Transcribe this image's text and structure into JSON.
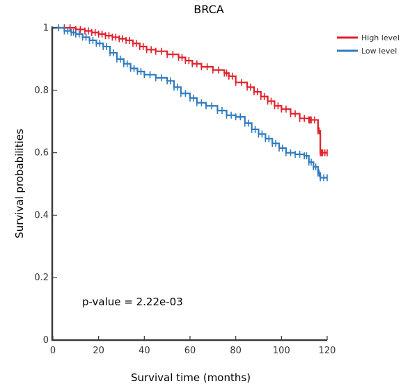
{
  "chart_data": {
    "type": "line",
    "title": "BRCA",
    "xlabel": "Survival time (months)",
    "ylabel": "Survival probabilities",
    "xlim": [
      0,
      120
    ],
    "ylim": [
      0,
      1
    ],
    "xticks": [
      0,
      20,
      40,
      60,
      80,
      100,
      120
    ],
    "yticks": [
      0,
      0.2,
      0.4,
      0.6,
      0.8,
      1
    ],
    "ytick_labels": [
      "0",
      "0.2",
      "0.4",
      "0.6",
      "0.8",
      "1"
    ],
    "grid": false,
    "legend_position": "top-right",
    "annotation": "p-value = 2.22e-03",
    "series": [
      {
        "name": "High level",
        "color": "#e0202a",
        "x": [
          0,
          5,
          10,
          14,
          17,
          20,
          23,
          26,
          29,
          32,
          35,
          38,
          41,
          45,
          50,
          55,
          58,
          61,
          65,
          70,
          75,
          77,
          80,
          85,
          88,
          91,
          94,
          97,
          100,
          104,
          108,
          112,
          113,
          116,
          117,
          118,
          120
        ],
        "y": [
          1.0,
          1.0,
          0.995,
          0.99,
          0.985,
          0.98,
          0.975,
          0.97,
          0.965,
          0.96,
          0.95,
          0.94,
          0.93,
          0.925,
          0.915,
          0.905,
          0.895,
          0.885,
          0.875,
          0.865,
          0.855,
          0.845,
          0.825,
          0.81,
          0.795,
          0.78,
          0.765,
          0.75,
          0.74,
          0.725,
          0.71,
          0.705,
          0.705,
          0.67,
          0.6,
          0.6,
          0.6
        ]
      },
      {
        "name": "Low level",
        "color": "#2f7bbf",
        "x": [
          0,
          5,
          8,
          10,
          13,
          16,
          19,
          22,
          25,
          28,
          31,
          34,
          37,
          40,
          45,
          50,
          53,
          56,
          60,
          63,
          67,
          72,
          76,
          80,
          84,
          87,
          90,
          93,
          96,
          99,
          102,
          106,
          110,
          112,
          114,
          116,
          117,
          120
        ],
        "y": [
          1.0,
          0.99,
          0.985,
          0.98,
          0.97,
          0.96,
          0.95,
          0.94,
          0.92,
          0.9,
          0.885,
          0.87,
          0.86,
          0.85,
          0.84,
          0.83,
          0.81,
          0.79,
          0.775,
          0.76,
          0.75,
          0.735,
          0.72,
          0.715,
          0.695,
          0.675,
          0.66,
          0.645,
          0.63,
          0.615,
          0.6,
          0.595,
          0.59,
          0.57,
          0.555,
          0.535,
          0.52,
          0.52
        ]
      }
    ]
  }
}
